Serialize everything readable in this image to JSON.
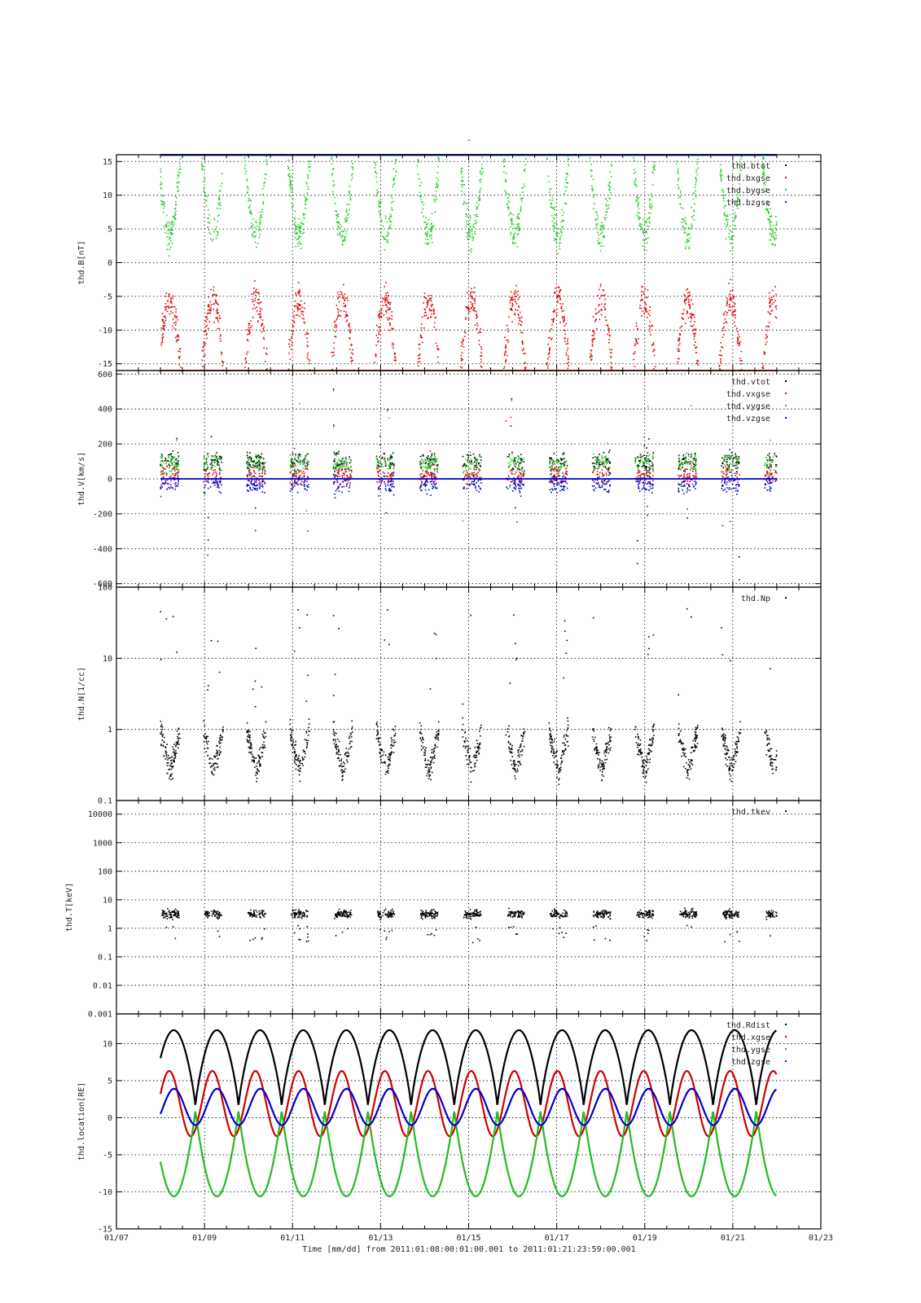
{
  "chart_data": [
    {
      "type": "scatter",
      "ylabel": "thd.B[nT]",
      "ylim": [
        -16,
        16
      ],
      "yscale": "linear",
      "yticks": [
        -15,
        -10,
        -5,
        0,
        5,
        10,
        15
      ],
      "ytick_labels": [
        "-15",
        "-10",
        "-5",
        "0",
        "5",
        "10",
        "15"
      ],
      "legend": [
        "thd.btot",
        "thd.bxgse",
        "thd.bygse",
        "thd.bzgse"
      ],
      "legend_position": "top-right",
      "grid": true,
      "series": [
        {
          "name": "thd.btot",
          "color": "#000000",
          "kind": "clipped-top",
          "y_level": 16
        },
        {
          "name": "thd.bxgse",
          "color": "#dd0000",
          "kind": "orbital-arc",
          "peak": -5.5,
          "base": -16
        },
        {
          "name": "thd.bygse",
          "color": "#22cc22",
          "kind": "orbital-valley",
          "min": 4,
          "max": 16
        },
        {
          "name": "thd.bzgse",
          "color": "#0000cc",
          "kind": "clipped",
          "y_level": 16
        }
      ]
    },
    {
      "type": "scatter",
      "ylabel": "thd.V[km/s]",
      "ylim": [
        -620,
        620
      ],
      "yscale": "linear",
      "yticks": [
        -600,
        -400,
        -200,
        0,
        200,
        400,
        600
      ],
      "ytick_labels": [
        "-600",
        "-400",
        "-200",
        "0",
        "200",
        "400",
        "600"
      ],
      "legend": [
        "thd.vtot",
        "thd.vxgse",
        "thd.vygse",
        "thd.vzgse"
      ],
      "legend_position": "top-right",
      "grid": true,
      "series": [
        {
          "name": "thd.vtot",
          "color": "#000000",
          "kind": "burst",
          "mean": 100
        },
        {
          "name": "thd.vxgse",
          "color": "#dd0000",
          "kind": "burst",
          "mean": 20
        },
        {
          "name": "thd.vygse",
          "color": "#22cc22",
          "kind": "burst",
          "mean": 90
        },
        {
          "name": "thd.vzgse",
          "color": "#0000cc",
          "kind": "burst",
          "mean": -30
        }
      ]
    },
    {
      "type": "scatter",
      "ylabel": "thd.N[1/cc]",
      "ylim": [
        0.1,
        100
      ],
      "yscale": "log",
      "yticks": [
        0.1,
        1,
        10,
        100
      ],
      "ytick_labels": [
        "0.1",
        "1",
        "10",
        "100"
      ],
      "legend": [
        "thd.Np"
      ],
      "legend_position": "top-right",
      "grid": true,
      "series": [
        {
          "name": "thd.Np",
          "color": "#000000",
          "kind": "density"
        }
      ]
    },
    {
      "type": "scatter",
      "ylabel": "thd.T[keV]",
      "ylim": [
        0.001,
        30000
      ],
      "yscale": "log",
      "yticks": [
        0.001,
        0.01,
        0.1,
        1,
        10,
        100,
        1000,
        10000
      ],
      "ytick_labels": [
        "0.001",
        "0.01",
        "0.1",
        "1",
        "10",
        "100",
        "1000",
        "10000"
      ],
      "legend": [
        "thd.tkev"
      ],
      "legend_position": "top-right",
      "grid": true,
      "series": [
        {
          "name": "thd.tkev",
          "color": "#000000",
          "kind": "temperature"
        }
      ]
    },
    {
      "type": "line",
      "ylabel": "thd.location[RE]",
      "ylim": [
        -15,
        14
      ],
      "yscale": "linear",
      "yticks": [
        -15,
        -10,
        -5,
        0,
        5,
        10
      ],
      "ytick_labels": [
        "-15",
        "-10",
        "-5",
        "0",
        "5",
        "10"
      ],
      "legend": [
        "thd.Rdist",
        "thd.xgse",
        "thd.ygse",
        "thd.zgse"
      ],
      "legend_position": "top-right",
      "grid": true,
      "orbit_period_days": 0.98,
      "series": [
        {
          "name": "thd.Rdist",
          "color": "#000000",
          "min": 1.5,
          "max": 11.8
        },
        {
          "name": "thd.xgse",
          "color": "#cc0000",
          "min": -2.5,
          "max": 6.3
        },
        {
          "name": "thd.ygse",
          "color": "#22bb22",
          "min": -10.6,
          "max": 1.0
        },
        {
          "name": "thd.zgse",
          "color": "#0000cc",
          "min": -1.0,
          "max": 3.9
        }
      ]
    }
  ],
  "x_axis": {
    "range_days": [
      7,
      23
    ],
    "data_start_day": 8.0,
    "data_end_day": 22.0,
    "ticks": [
      7,
      9,
      11,
      13,
      15,
      17,
      19,
      21,
      23
    ],
    "tick_labels": [
      "01/07",
      "01/09",
      "01/11",
      "01/13",
      "01/15",
      "01/17",
      "01/19",
      "01/21",
      "01/23"
    ],
    "label": "Time [mm/dd]  from 2011:01:08:00:01:00.001  to  2011:01:21:23:59:00.001"
  },
  "title": "-"
}
